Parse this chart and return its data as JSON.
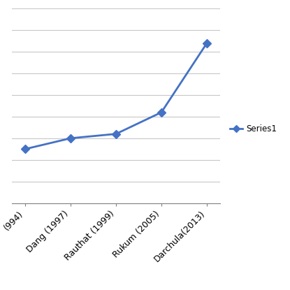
{
  "categories": [
    "(994)",
    "Dang (1997)",
    "Rauthat (1999)",
    "Rukum (2005)",
    "Darchula(2013)"
  ],
  "values": [
    2500,
    3000,
    3200,
    4200,
    7400
  ],
  "line_color": "#4472C4",
  "marker": "D",
  "marker_size": 6,
  "line_width": 2.0,
  "background_color": "#ffffff",
  "grid_color": "#c8c8c8",
  "ylim": [
    0,
    9000
  ],
  "ytick_interval": 1000,
  "legend_label": "Series1",
  "figsize": [
    4.15,
    4.15
  ],
  "dpi": 100
}
